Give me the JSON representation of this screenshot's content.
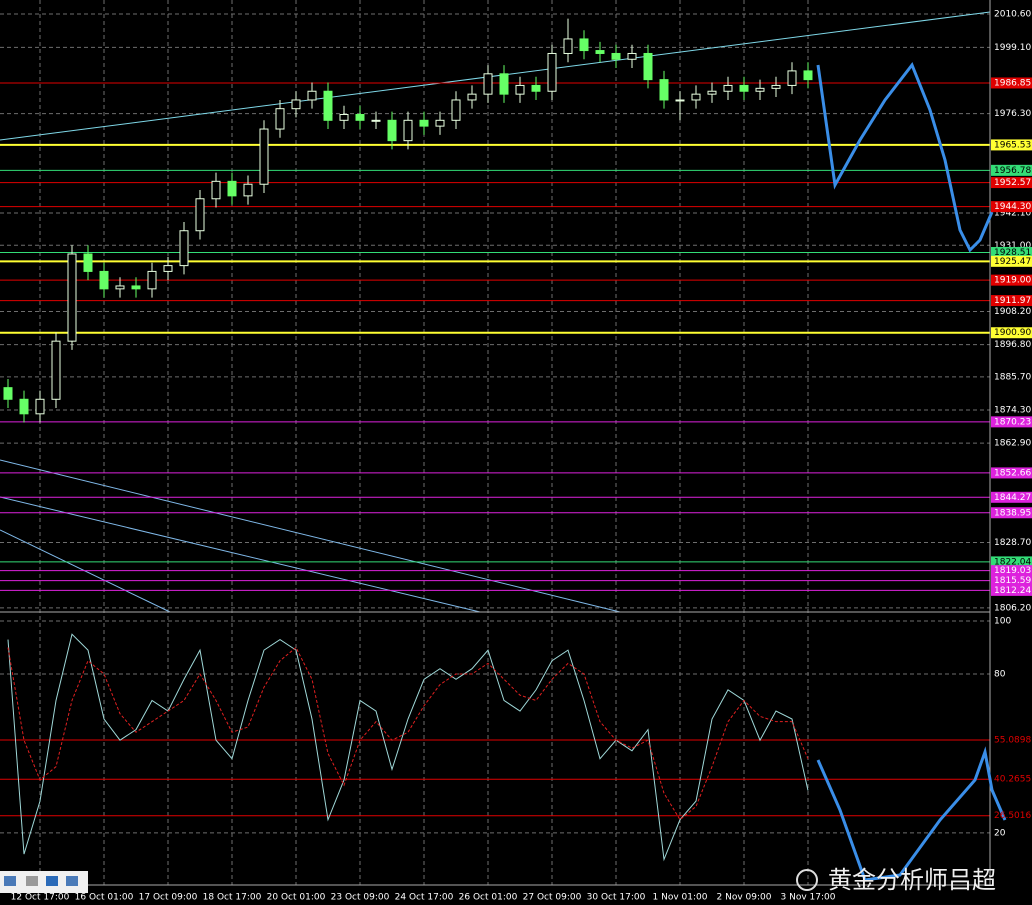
{
  "chart_data": [
    {
      "type": "candlestick",
      "categories": [
        null,
        null,
        "12 Oct 17:00",
        null,
        null,
        null,
        "16 Oct 01:00",
        null,
        null,
        null,
        "17 Oct 09:00",
        null,
        null,
        null,
        "18 Oct 17:00",
        null,
        null,
        null,
        "20 Oct 01:00",
        null,
        null,
        null,
        "23 Oct 09:00",
        null,
        null,
        null,
        "24 Oct 17:00",
        null,
        null,
        null,
        "26 Oct 01:00",
        null,
        null,
        null,
        "27 Oct 09:00",
        null,
        null,
        null,
        "30 Oct 17:00",
        null,
        null,
        null,
        "1 Nov 01:00",
        null,
        null,
        null,
        "2 Nov 09:00",
        null,
        null,
        null,
        "3 Nov 17:00"
      ],
      "open": [
        1882,
        1878,
        1873,
        1878,
        1898,
        1928,
        1922,
        1916,
        1917,
        1916,
        1922,
        1924,
        1936,
        1947,
        1953,
        1948,
        1952,
        1971,
        1978,
        1981,
        1984,
        1974,
        1976,
        1974,
        1974,
        1967,
        1974,
        1972,
        1974,
        1981,
        1983,
        1990,
        1983,
        1986,
        1984,
        1997,
        2002,
        1998,
        1997,
        1995,
        1997,
        1988,
        1981,
        1981,
        1983,
        1984,
        1986,
        1984,
        1985,
        1986,
        1991
      ],
      "high": [
        1885,
        1881,
        1881,
        1901,
        1931,
        1931,
        1925,
        1920,
        1920,
        1925,
        1927,
        1939,
        1950,
        1956,
        1956,
        1955,
        1974,
        1981,
        1984,
        1987,
        1987,
        1979,
        1979,
        1977,
        1977,
        1977,
        1977,
        1977,
        1984,
        1986,
        1993,
        1993,
        1989,
        1989,
        2000,
        2009,
        2005,
        2001,
        2000,
        2000,
        2000,
        1991,
        1984,
        1986,
        1987,
        1989,
        1989,
        1988,
        1989,
        1994,
        1994
      ],
      "low": [
        1875,
        1870,
        1870,
        1875,
        1895,
        1919,
        1913,
        1913,
        1913,
        1913,
        1919,
        1921,
        1933,
        1944,
        1945,
        1945,
        1949,
        1968,
        1975,
        1978,
        1971,
        1971,
        1971,
        1971,
        1964,
        1964,
        1969,
        1969,
        1971,
        1978,
        1980,
        1980,
        1980,
        1981,
        1981,
        1994,
        1995,
        1994,
        1992,
        1992,
        1985,
        1978,
        1974,
        1978,
        1980,
        1981,
        1981,
        1981,
        1982,
        1983,
        1985
      ],
      "close": [
        1878,
        1873,
        1878,
        1898,
        1928,
        1922,
        1916,
        1917,
        1916,
        1922,
        1924,
        1936,
        1947,
        1953,
        1948,
        1952,
        1971,
        1978,
        1981,
        1984,
        1974,
        1976,
        1974,
        1974,
        1967,
        1974,
        1972,
        1974,
        1981,
        1983,
        1990,
        1983,
        1986,
        1984,
        1997,
        2002,
        1998,
        1997,
        1995,
        1997,
        1988,
        1981,
        1981,
        1983,
        1984,
        1986,
        1984,
        1985,
        1986,
        1991,
        1988
      ],
      "up_color": "#e8ffe0",
      "down_color": "#66ff66",
      "ylim": [
        1804.8,
        2015.4
      ],
      "yticks": [
        {
          "value": 2010.6,
          "label": "2010.60"
        },
        {
          "value": 1999.1,
          "label": "1999.10"
        },
        {
          "value": 1976.3,
          "label": "1976.30"
        },
        {
          "value": 1942.1,
          "label": "1942.10"
        },
        {
          "value": 1931.0,
          "label": "1931.00"
        },
        {
          "value": 1908.2,
          "label": "1908.20"
        },
        {
          "value": 1896.8,
          "label": "1896.80"
        },
        {
          "value": 1885.7,
          "label": "1885.70"
        },
        {
          "value": 1874.3,
          "label": "1874.30"
        },
        {
          "value": 1862.9,
          "label": "1862.90"
        },
        {
          "value": 1828.7,
          "label": "1828.70"
        },
        {
          "value": 1806.2,
          "label": "1806.20"
        }
      ],
      "grid": true,
      "levels": [
        {
          "value": 1986.85,
          "color": "#e00000"
        },
        {
          "value": 1965.53,
          "color": "#ffff33"
        },
        {
          "value": 1956.78,
          "color": "#33dd77"
        },
        {
          "value": 1952.57,
          "color": "#e00000"
        },
        {
          "value": 1944.3,
          "label": "1944.30",
          "color": "#e00000"
        },
        {
          "value": 1928.51,
          "color": "#33dd77"
        },
        {
          "value": 1925.47,
          "color": "#ffff33"
        },
        {
          "value": 1919.0,
          "label": "1919.00",
          "color": "#e00000"
        },
        {
          "value": 1911.97,
          "color": "#e00000"
        },
        {
          "value": 1900.9,
          "label": "1900.90",
          "color": "#ffff33"
        },
        {
          "value": 1870.23,
          "color": "#dd22dd"
        },
        {
          "value": 1852.66,
          "color": "#dd22dd"
        },
        {
          "value": 1844.27,
          "color": "#dd22dd"
        },
        {
          "value": 1838.95,
          "color": "#dd22dd"
        },
        {
          "value": 1822.04,
          "color": "#33dd77"
        },
        {
          "value": 1819.03,
          "color": "#dd22dd"
        },
        {
          "value": 1815.59,
          "color": "#dd22dd"
        },
        {
          "value": 1812.24,
          "color": "#dd22dd"
        }
      ]
    },
    {
      "type": "line",
      "series": [
        {
          "color": "#9fd8d8",
          "dash": false,
          "values": [
            93,
            12,
            32,
            70,
            95,
            89,
            63,
            55,
            59,
            70,
            66,
            78,
            89,
            55,
            48,
            70,
            89,
            93,
            89,
            63,
            25,
            40,
            70,
            66,
            44,
            63,
            78,
            82,
            78,
            82,
            89,
            70,
            66,
            74,
            85,
            89,
            70,
            48,
            55,
            51,
            59,
            10,
            25,
            32,
            63,
            74,
            70,
            55,
            66,
            63,
            36
          ]
        },
        {
          "color": "#e02020",
          "dash": true,
          "values": [
            90,
            55,
            40,
            45,
            70,
            85,
            80,
            65,
            58,
            62,
            66,
            70,
            80,
            70,
            58,
            60,
            75,
            85,
            90,
            78,
            50,
            38,
            55,
            62,
            55,
            58,
            68,
            76,
            80,
            80,
            84,
            78,
            72,
            70,
            78,
            84,
            80,
            62,
            55,
            52,
            55,
            35,
            25,
            30,
            45,
            62,
            70,
            64,
            62,
            62,
            48
          ]
        }
      ],
      "ylim": [
        6,
        103.4
      ],
      "yticks": [
        100,
        80,
        20
      ],
      "grid": true,
      "levels": [
        {
          "value": 55.0898,
          "color": "#e00000"
        },
        {
          "value": 40.2655,
          "color": "#e00000"
        },
        {
          "value": 26.5016,
          "color": "#e00000"
        }
      ]
    }
  ],
  "watermark": "黄金分析师吕超"
}
